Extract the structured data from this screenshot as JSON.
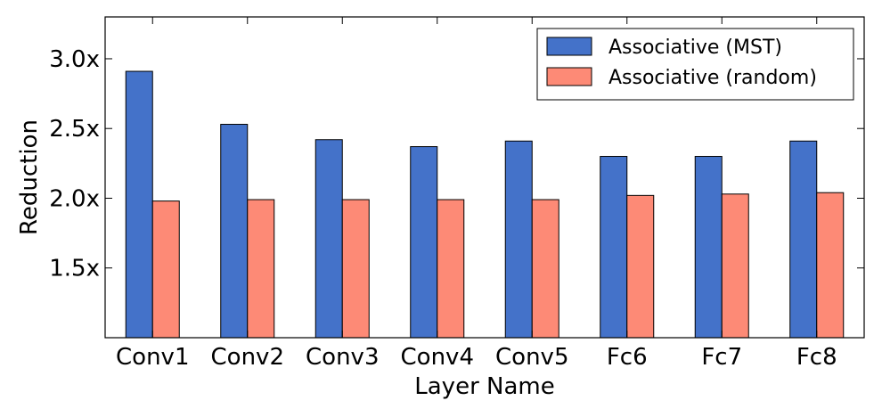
{
  "chart_data": {
    "type": "bar",
    "title": "",
    "xlabel": "Layer Name",
    "ylabel": "Reduction",
    "categories": [
      "Conv1",
      "Conv2",
      "Conv3",
      "Conv4",
      "Conv5",
      "Fc6",
      "Fc7",
      "Fc8"
    ],
    "series": [
      {
        "name": "Associative (MST)",
        "color": "#4472c9",
        "values": [
          2.91,
          2.53,
          2.42,
          2.37,
          2.41,
          2.3,
          2.3,
          2.41
        ]
      },
      {
        "name": "Associative (random)",
        "color": "#fd8a76",
        "values": [
          1.98,
          1.99,
          1.99,
          1.99,
          1.99,
          2.02,
          2.03,
          2.04
        ]
      }
    ],
    "ylim": [
      1.0,
      3.3
    ],
    "yticks": [
      1.5,
      2.0,
      2.5,
      3.0
    ],
    "ytick_labels": [
      "1.5x",
      "2.0x",
      "2.5x",
      "3.0x"
    ],
    "grid": false,
    "legend_position": "top-right"
  }
}
